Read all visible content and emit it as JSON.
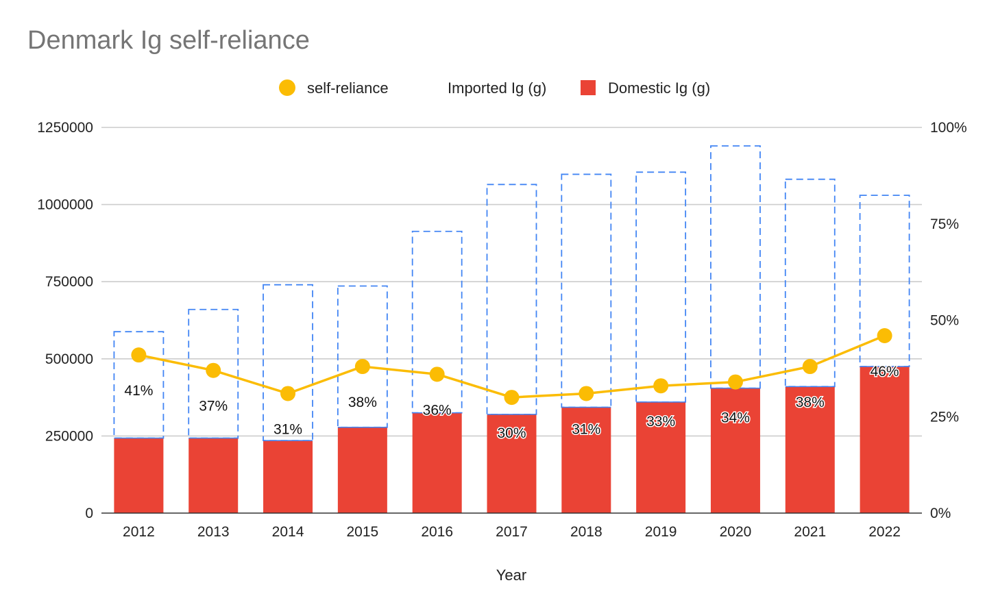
{
  "chart_data": {
    "type": "bar",
    "title": "Denmark Ig self-reliance",
    "xlabel": "Year",
    "ylabel": "",
    "categories": [
      "2012",
      "2013",
      "2014",
      "2015",
      "2016",
      "2017",
      "2018",
      "2019",
      "2020",
      "2021",
      "2022"
    ],
    "series": [
      {
        "name": "Domestic Ig (g)",
        "kind": "bar",
        "axis": "left",
        "color": "#EA4335",
        "values": [
          243000,
          243000,
          235000,
          278000,
          325000,
          320000,
          343000,
          360000,
          405000,
          410000,
          475000
        ]
      },
      {
        "name": "Imported Ig (g)",
        "kind": "stacked-bar-outline",
        "axis": "left",
        "color": "#4285F4",
        "values": [
          345000,
          417000,
          505000,
          458000,
          588000,
          745000,
          755000,
          745000,
          785000,
          672000,
          555000
        ]
      },
      {
        "name": "self-reliance",
        "kind": "line",
        "axis": "right",
        "color": "#FBBC04",
        "values": [
          0.41,
          0.37,
          0.31,
          0.38,
          0.36,
          0.3,
          0.31,
          0.33,
          0.34,
          0.38,
          0.46
        ]
      }
    ],
    "data_labels": [
      "41%",
      "37%",
      "31%",
      "38%",
      "36%",
      "30%",
      "31%",
      "33%",
      "34%",
      "38%",
      "46%"
    ],
    "left_axis": {
      "min": 0,
      "max": 1250000,
      "ticks": [
        "0",
        "250000",
        "500000",
        "750000",
        "1000000",
        "1250000"
      ]
    },
    "right_axis": {
      "min": 0,
      "max": 1,
      "ticks": [
        "0%",
        "25%",
        "50%",
        "75%",
        "100%"
      ]
    },
    "grid": true,
    "legend_position": "top",
    "legend": [
      {
        "name": "self-reliance",
        "marker": "circle",
        "color": "#FBBC04"
      },
      {
        "name": "Imported Ig (g)",
        "marker": "none",
        "color": "#4285F4"
      },
      {
        "name": "Domestic Ig (g)",
        "marker": "square",
        "color": "#EA4335"
      }
    ]
  }
}
